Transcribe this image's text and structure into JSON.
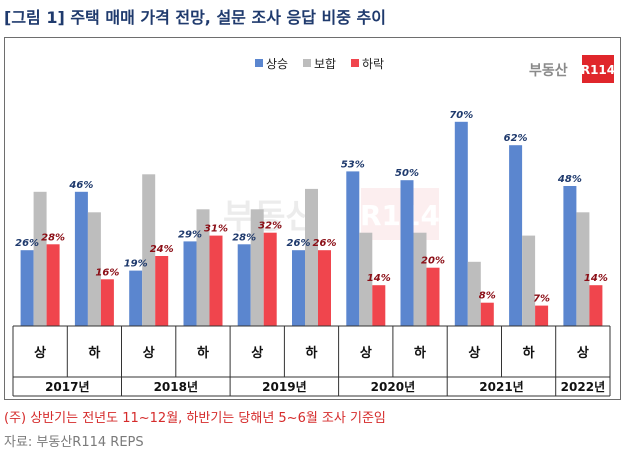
{
  "title": "[그림 1] 주택 매매 가격 전망, 설문 조사 응답 비중 추이",
  "note": "(주) 상반기는 전년도 11~12월, 하반기는 당해년 5~6월 조사 기준임",
  "source": "자료: 부동산R114 REPS",
  "logo": {
    "text": "부동산",
    "badge": "R114",
    "badge_color": "#e0262b"
  },
  "colors": {
    "up": "#5b86cf",
    "hold": "#bdbdbd",
    "down": "#f0454d",
    "up_label": "#1f3a6d",
    "down_label": "#8b0e16"
  },
  "chart_data": {
    "type": "bar",
    "title": "",
    "xlabel": "",
    "ylabel": "",
    "ylim": [
      0,
      72
    ],
    "legend_position": "top-right",
    "grid": false,
    "categories": [
      "상",
      "하",
      "상",
      "하",
      "상",
      "하",
      "상",
      "하",
      "상",
      "하",
      "상"
    ],
    "groups": [
      {
        "label": "2017년",
        "span": 2
      },
      {
        "label": "2018년",
        "span": 2
      },
      {
        "label": "2019년",
        "span": 2
      },
      {
        "label": "2020년",
        "span": 2
      },
      {
        "label": "2021년",
        "span": 2
      },
      {
        "label": "2022년",
        "span": 1
      }
    ],
    "series": [
      {
        "name": "상승",
        "labels_shown": true,
        "values": [
          26,
          46,
          19,
          29,
          28,
          26,
          53,
          50,
          70,
          62,
          48
        ]
      },
      {
        "name": "보합",
        "labels_shown": false,
        "values": [
          46,
          39,
          52,
          40,
          40,
          47,
          32,
          32,
          22,
          31,
          39
        ]
      },
      {
        "name": "하락",
        "labels_shown": true,
        "values": [
          28,
          16,
          24,
          31,
          32,
          26,
          14,
          20,
          8,
          7,
          14
        ]
      }
    ]
  }
}
